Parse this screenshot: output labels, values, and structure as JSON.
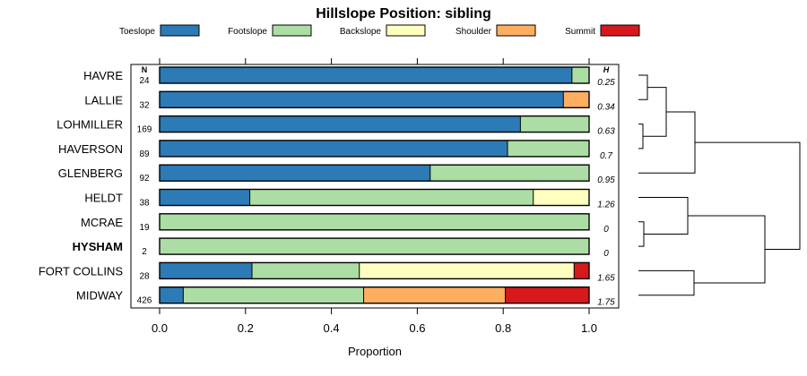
{
  "chart_data": {
    "type": "bar",
    "orientation": "horizontal",
    "stacked": true,
    "title": "Hillslope Position: sibling",
    "xlabel": "Proportion",
    "xlim": [
      0,
      1
    ],
    "xticks": [
      0.0,
      0.2,
      0.4,
      0.6,
      0.8,
      1.0
    ],
    "xtick_labels": [
      "0.0",
      "0.2",
      "0.4",
      "0.6",
      "0.8",
      "1.0"
    ],
    "grid": false,
    "legend_position": "top",
    "n_header": "N",
    "h_header": "H",
    "legend": [
      {
        "name": "Toeslope",
        "color": "#2C7BB6"
      },
      {
        "name": "Footslope",
        "color": "#ABDDA4"
      },
      {
        "name": "Backslope",
        "color": "#FFFFBF"
      },
      {
        "name": "Shoulder",
        "color": "#FDAE61"
      },
      {
        "name": "Summit",
        "color": "#D7191C"
      }
    ],
    "rows": [
      {
        "label": "HAVRE",
        "bold": false,
        "n": "24",
        "h": "0.25",
        "values": [
          0.96,
          0.04,
          0,
          0,
          0
        ]
      },
      {
        "label": "LALLIE",
        "bold": false,
        "n": "32",
        "h": "0.34",
        "values": [
          0.94,
          0,
          0,
          0.06,
          0
        ]
      },
      {
        "label": "LOHMILLER",
        "bold": false,
        "n": "169",
        "h": "0.63",
        "values": [
          0.84,
          0.16,
          0,
          0,
          0
        ]
      },
      {
        "label": "HAVERSON",
        "bold": false,
        "n": "89",
        "h": "0.7",
        "values": [
          0.81,
          0.19,
          0,
          0,
          0
        ]
      },
      {
        "label": "GLENBERG",
        "bold": false,
        "n": "92",
        "h": "0.95",
        "values": [
          0.63,
          0.37,
          0,
          0,
          0
        ]
      },
      {
        "label": "HELDT",
        "bold": false,
        "n": "38",
        "h": "1.26",
        "values": [
          0.21,
          0.66,
          0.13,
          0,
          0
        ]
      },
      {
        "label": "MCRAE",
        "bold": false,
        "n": "19",
        "h": "0",
        "values": [
          0,
          1.0,
          0,
          0,
          0
        ]
      },
      {
        "label": "HYSHAM",
        "bold": true,
        "n": "2",
        "h": "0",
        "values": [
          0,
          1.0,
          0,
          0,
          0
        ]
      },
      {
        "label": "FORT COLLINS",
        "bold": false,
        "n": "28",
        "h": "1.65",
        "values": [
          0.215,
          0.25,
          0.5,
          0,
          0.035
        ]
      },
      {
        "label": "MIDWAY",
        "bold": false,
        "n": "426",
        "h": "1.75",
        "values": [
          0.055,
          0.42,
          0,
          0.33,
          0.195
        ]
      }
    ]
  }
}
